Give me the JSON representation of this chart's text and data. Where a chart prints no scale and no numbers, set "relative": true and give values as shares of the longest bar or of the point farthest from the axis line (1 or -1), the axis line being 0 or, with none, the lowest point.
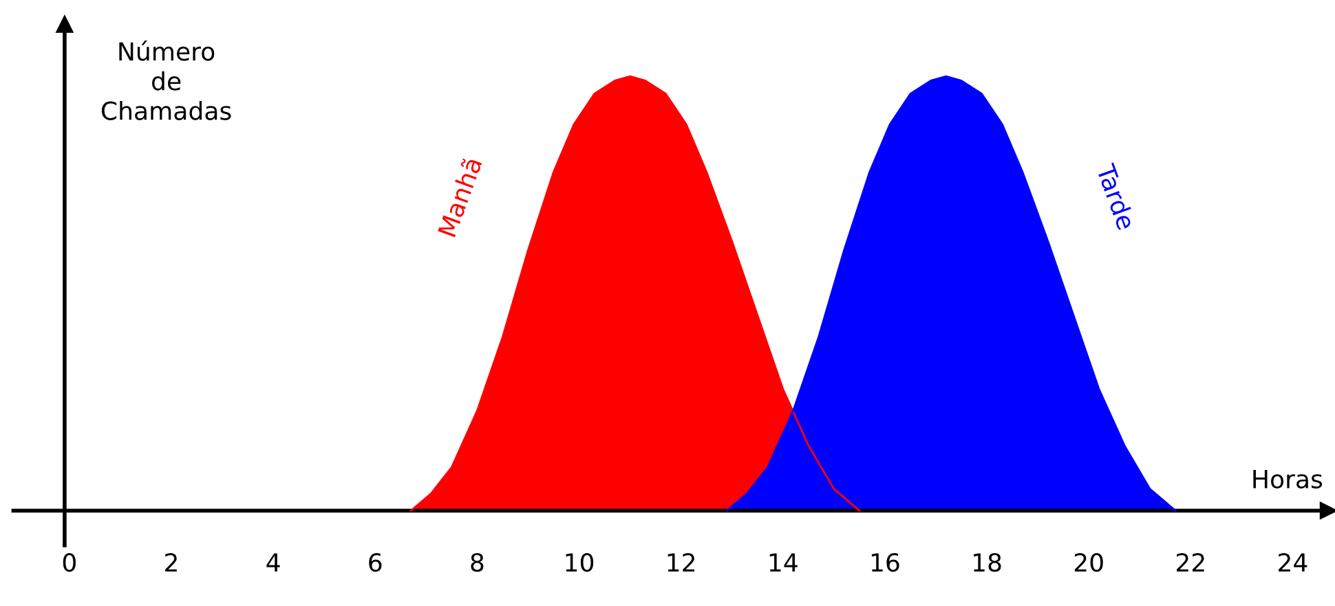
{
  "chart_data": {
    "type": "area",
    "relative": true,
    "ylabel": "Número\nde\nChamadas",
    "xlabel": "Horas",
    "xlim": [
      -1.1,
      24.7
    ],
    "xticks": [
      0,
      2,
      4,
      6,
      8,
      10,
      12,
      14,
      16,
      18,
      20,
      22,
      24
    ],
    "legend": false,
    "series": [
      {
        "name": "Manhã",
        "color": "#ff0000",
        "x": [
          6.7,
          7.1,
          7.5,
          8.0,
          8.5,
          9.0,
          9.5,
          9.9,
          10.3,
          10.7,
          11.0,
          11.3,
          11.7,
          12.1,
          12.5,
          13.0,
          13.5,
          14.0,
          14.5,
          15.0,
          15.5
        ],
        "values": [
          0,
          0.04,
          0.1,
          0.23,
          0.4,
          0.6,
          0.78,
          0.89,
          0.96,
          0.99,
          1,
          0.99,
          0.96,
          0.89,
          0.78,
          0.62,
          0.45,
          0.28,
          0.15,
          0.05,
          0
        ]
      },
      {
        "name": "Tarde",
        "color": "#0000ff",
        "x": [
          12.9,
          13.3,
          13.7,
          14.2,
          14.7,
          15.2,
          15.7,
          16.1,
          16.5,
          16.9,
          17.2,
          17.5,
          17.9,
          18.3,
          18.7,
          19.2,
          19.7,
          20.2,
          20.7,
          21.2,
          21.7
        ],
        "values": [
          0,
          0.04,
          0.1,
          0.23,
          0.4,
          0.6,
          0.78,
          0.89,
          0.96,
          0.99,
          1,
          0.99,
          0.96,
          0.89,
          0.78,
          0.62,
          0.45,
          0.28,
          0.15,
          0.05,
          0
        ]
      }
    ]
  }
}
